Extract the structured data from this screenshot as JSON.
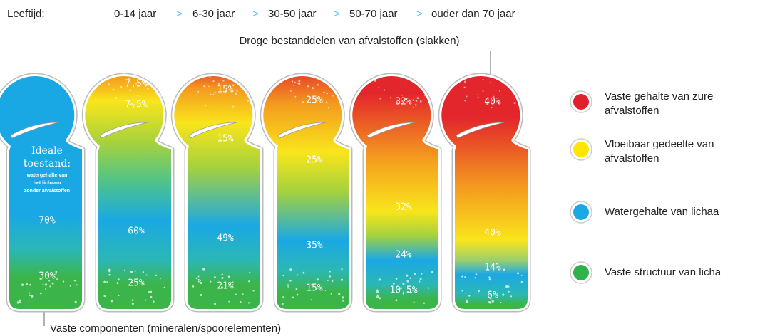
{
  "header": {
    "label": "Leeftijd:",
    "separator": ">",
    "ages": [
      "0-14 jaar",
      "6-30 jaar",
      "30-50 jaar",
      "50-70 jaar",
      "ouder dan 70 jaar"
    ]
  },
  "top_annotation": "Droge bestanddelen van afvalstoffen (slakken)",
  "bottom_annotation": "Vaste componenten (mineralen/spoorelementen)",
  "figures": [
    {
      "title": [
        "Ideale",
        "toestand:"
      ],
      "note": [
        "watergehalte van",
        "het lichaam",
        "zonder afvalstoffen"
      ],
      "labels": [
        "70%",
        "30%"
      ]
    },
    {
      "labels": [
        "7,5%",
        "7,5%",
        "60%",
        "25%"
      ]
    },
    {
      "labels": [
        "15%",
        "15%",
        "49%",
        "21%"
      ]
    },
    {
      "labels": [
        "25%",
        "25%",
        "35%",
        "15%"
      ]
    },
    {
      "labels": [
        "32%",
        "32%",
        "24%",
        "10,5%"
      ]
    },
    {
      "labels": [
        "40%",
        "40%",
        "14%",
        "6%"
      ]
    }
  ],
  "legend": [
    {
      "color": "#e0202a",
      "lines": [
        "Vaste gehalte van zure",
        "afvalstoffen"
      ]
    },
    {
      "color": "#ffe600",
      "lines": [
        "Vloeibaar gedeelte van",
        "afvalstoffen"
      ]
    },
    {
      "color": "#1ba9e6",
      "lines": [
        "Watergehalte van lichaa"
      ]
    },
    {
      "color": "#2fb24a",
      "lines": [
        "Vaste structuur van licha"
      ]
    }
  ]
}
